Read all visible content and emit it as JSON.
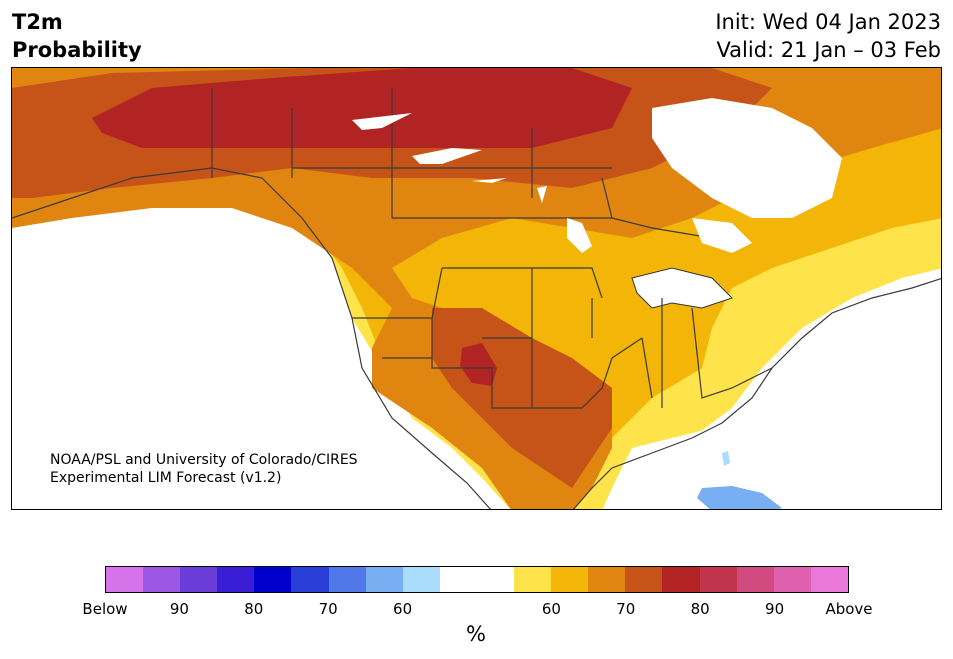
{
  "header": {
    "title_line1": "T2m",
    "title_line2": "Probability",
    "init_label": "Init: Wed 04 Jan 2023",
    "valid_label": "Valid: 21 Jan – 03 Feb"
  },
  "map": {
    "credit_line1": "NOAA/PSL and University of Colorado/CIRES",
    "credit_line2": "Experimental LIM Forecast (v1.2)"
  },
  "colorbar": {
    "colors": [
      "#d574ea",
      "#9b56e4",
      "#6a3cd8",
      "#3a1ed6",
      "#0000cd",
      "#2a3ed8",
      "#5078e8",
      "#78aef2",
      "#acdcfc",
      "#ffffff",
      "#ffffff",
      "#fee34a",
      "#f3b608",
      "#e08610",
      "#c65318",
      "#b22424",
      "#c2344e",
      "#d14a80",
      "#de60ae",
      "#ea77da"
    ],
    "ticks": [
      "Below",
      "90",
      "80",
      "70",
      "60",
      "60",
      "70",
      "80",
      "90",
      "Above"
    ],
    "unit": "%"
  },
  "legend_colors": {
    "light_yellow": "#fee34a",
    "yellow": "#f3b608",
    "orange": "#e08610",
    "dark_orange": "#c65318",
    "red": "#b22424",
    "light_blue": "#78aef2"
  }
}
